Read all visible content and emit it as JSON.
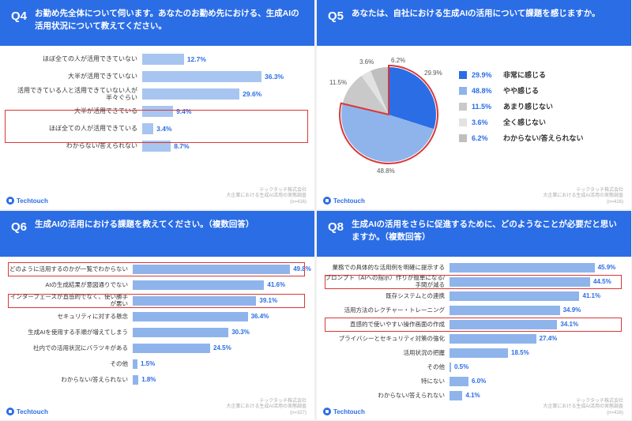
{
  "brand": "Techtouch",
  "footer": {
    "company": "テックタッチ株式会社",
    "survey": "大企業における生成AI活用の実態調査",
    "n_default": "(n=416)",
    "n_q6": "(n=327)"
  },
  "colors": {
    "primary": "#2b6de5",
    "bar_fill": "#a7c5f0",
    "bar_fill2": "#8fb4eb",
    "highlight": "#d93838",
    "pie": [
      "#2b6de5",
      "#8fb4eb",
      "#c9c9c9",
      "#e2e2e2",
      "#bfbfbf"
    ]
  },
  "q4": {
    "num": "Q4",
    "text": "お勤め先全体について伺います。あなたのお勤め先における、生成AIの活用状況について教えてください。",
    "max": 50,
    "items": [
      {
        "label": "ほぼ全ての人が活用できていない",
        "val": 12.7
      },
      {
        "label": "大半が活用できていない",
        "val": 36.3
      },
      {
        "label": "活用できている人と活用できていない人が半々ぐらい",
        "val": 29.6
      },
      {
        "label": "大半が活用できている",
        "val": 9.4
      },
      {
        "label": "ほぼ全ての人が活用できている",
        "val": 3.4
      },
      {
        "label": "わからない/答えられない",
        "val": 8.7
      }
    ],
    "highlight": {
      "from": 3,
      "to": 4
    }
  },
  "q5": {
    "num": "Q5",
    "text": "あなたは、自社における生成AIの活用について課題を感じますか。",
    "slices": [
      {
        "label": "非常に感じる",
        "val": 29.9,
        "color": "#2b6de5"
      },
      {
        "label": "やや感じる",
        "val": 48.8,
        "color": "#8fb4eb"
      },
      {
        "label": "あまり感じない",
        "val": 11.5,
        "color": "#c9c9c9"
      },
      {
        "label": "全く感じない",
        "val": 3.6,
        "color": "#e2e2e2"
      },
      {
        "label": "わからない/答えられない",
        "val": 6.2,
        "color": "#bfbfbf"
      }
    ]
  },
  "q6": {
    "num": "Q6",
    "text": "生成AIの活用における課題を教えてください。（複数回答）",
    "max": 55,
    "items": [
      {
        "label": "どのように活用するのかが一覧でわからない",
        "val": 49.8,
        "hl": true
      },
      {
        "label": "AIの生成結果が意図通りでない",
        "val": 41.6
      },
      {
        "label": "インターフェースが直感的でなく、使い勝手が悪い",
        "val": 39.1,
        "hl": true
      },
      {
        "label": "セキュリティに対する懸念",
        "val": 36.4
      },
      {
        "label": "生成AIを使用する手順が増えてしまう",
        "val": 30.3
      },
      {
        "label": "社内での活用状況にバラツキがある",
        "val": 24.5
      },
      {
        "label": "その他",
        "val": 1.5
      },
      {
        "label": "わからない/答えられない",
        "val": 1.8
      }
    ]
  },
  "q8": {
    "num": "Q8",
    "text": "生成AIの活用をさらに促進するために、どのようなことが必要だと思いますか。（複数回答）",
    "max": 55,
    "items": [
      {
        "label": "業務での具体的な活用例を明確に提示する",
        "val": 45.9
      },
      {
        "label": "プロンプト（AIへの指示）作りが簡単になる/手間が減る",
        "val": 44.5,
        "hl": true
      },
      {
        "label": "既存システムとの連携",
        "val": 41.1
      },
      {
        "label": "活用方法のレクチャー・トレーニング",
        "val": 34.9
      },
      {
        "label": "直感的で使いやすい操作画面の作成",
        "val": 34.1,
        "hl": true
      },
      {
        "label": "プライバシーとセキュリティ対策の強化",
        "val": 27.4
      },
      {
        "label": "活用状況の把握",
        "val": 18.5
      },
      {
        "label": "その他",
        "val": 0.5
      },
      {
        "label": "特にない",
        "val": 6.0
      },
      {
        "label": "わからない/答えられない",
        "val": 4.1
      }
    ]
  }
}
